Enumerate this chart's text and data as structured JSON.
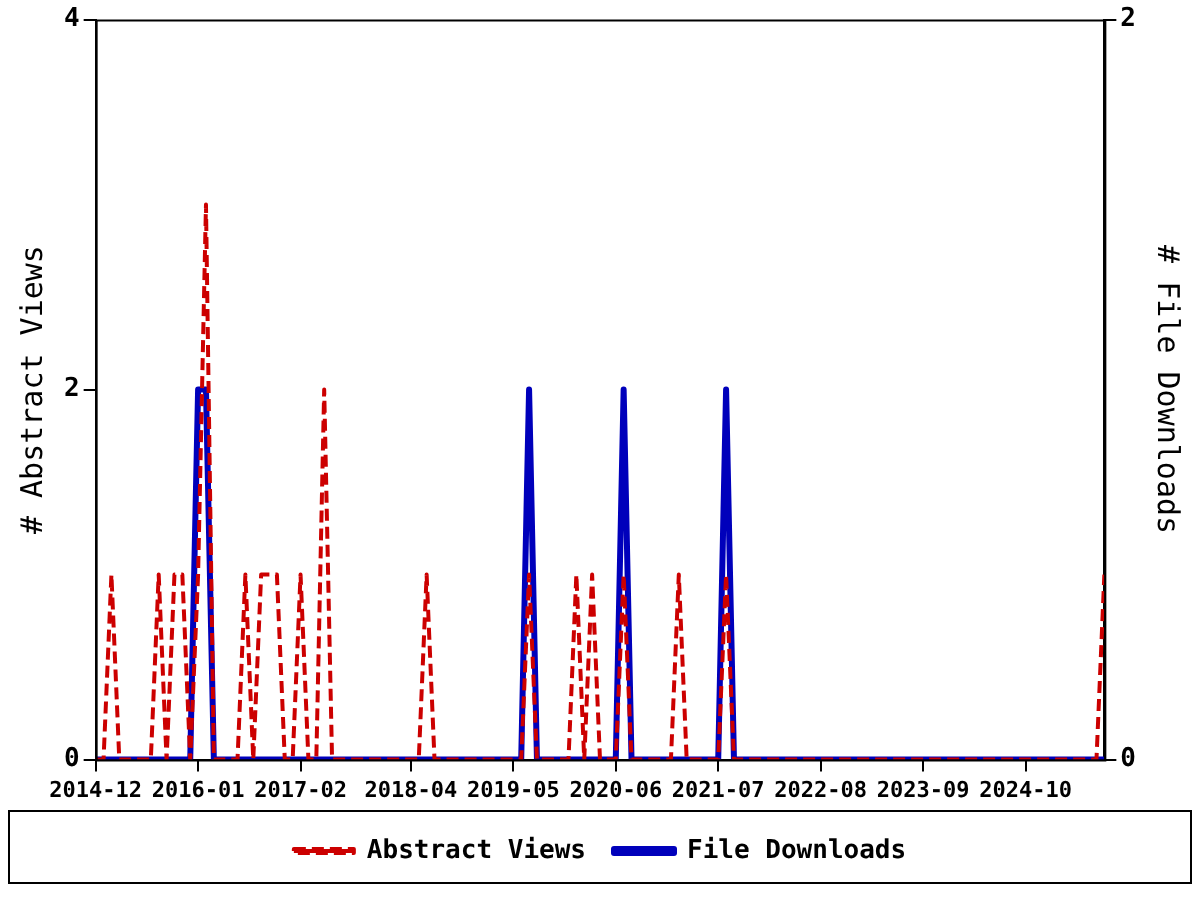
{
  "chart_data": {
    "type": "line",
    "xlabel": null,
    "ylabel": "# Abstract Views",
    "y2label": "# File Downloads",
    "x": [
      "2014-12",
      "2015-01",
      "2015-02",
      "2015-03",
      "2015-04",
      "2015-05",
      "2015-06",
      "2015-07",
      "2015-08",
      "2015-09",
      "2015-10",
      "2015-11",
      "2015-12",
      "2016-01",
      "2016-02",
      "2016-03",
      "2016-04",
      "2016-05",
      "2016-06",
      "2016-07",
      "2016-08",
      "2016-09",
      "2016-10",
      "2016-11",
      "2016-12",
      "2017-01",
      "2017-02",
      "2017-03",
      "2017-04",
      "2017-05",
      "2017-06",
      "2017-07",
      "2017-08",
      "2017-09",
      "2017-10",
      "2017-11",
      "2017-12",
      "2018-01",
      "2018-02",
      "2018-03",
      "2018-04",
      "2018-05",
      "2018-06",
      "2018-07",
      "2018-08",
      "2018-09",
      "2018-10",
      "2018-11",
      "2018-12",
      "2019-01",
      "2019-02",
      "2019-03",
      "2019-04",
      "2019-05",
      "2019-06",
      "2019-07",
      "2019-08",
      "2019-09",
      "2019-10",
      "2019-11",
      "2019-12",
      "2020-01",
      "2020-02",
      "2020-03",
      "2020-04",
      "2020-05",
      "2020-06",
      "2020-07",
      "2020-08",
      "2020-09",
      "2020-10",
      "2020-11",
      "2020-12",
      "2021-01",
      "2021-02",
      "2021-03",
      "2021-04",
      "2021-05",
      "2021-06",
      "2021-07",
      "2021-08",
      "2021-09",
      "2021-10",
      "2021-11",
      "2021-12",
      "2022-01",
      "2022-02",
      "2022-03",
      "2022-04",
      "2022-05",
      "2022-06",
      "2022-07",
      "2022-08",
      "2022-09",
      "2022-10",
      "2022-11",
      "2022-12",
      "2023-01",
      "2023-02",
      "2023-03",
      "2023-04",
      "2023-05",
      "2023-06",
      "2023-07",
      "2023-08",
      "2023-09",
      "2023-10",
      "2023-11",
      "2023-12",
      "2024-01",
      "2024-02",
      "2024-03",
      "2024-04",
      "2024-05",
      "2024-06",
      "2024-07",
      "2024-08",
      "2024-09",
      "2024-10",
      "2024-11",
      "2024-12",
      "2025-01",
      "2025-02",
      "2025-03",
      "2025-04",
      "2025-05",
      "2025-06",
      "2025-07",
      "2025-08"
    ],
    "series": [
      {
        "name": "Abstract Views",
        "color": "#cc0000",
        "line_style": "dashed",
        "values": [
          0,
          0,
          1,
          0,
          0,
          0,
          0,
          0,
          1,
          0,
          1,
          1,
          0,
          1,
          3,
          0,
          0,
          0,
          0,
          1,
          0,
          1,
          1,
          1,
          0,
          0,
          1,
          0,
          0,
          2,
          0,
          0,
          0,
          0,
          0,
          0,
          0,
          0,
          0,
          0,
          0,
          0,
          1,
          0,
          0,
          0,
          0,
          0,
          0,
          0,
          0,
          0,
          0,
          0,
          0,
          1,
          0,
          0,
          0,
          0,
          0,
          1,
          0,
          1,
          0,
          0,
          0,
          1,
          0,
          0,
          0,
          0,
          0,
          0,
          1,
          0,
          0,
          0,
          0,
          0,
          1,
          0,
          0,
          0,
          0,
          0,
          0,
          0,
          0,
          0,
          0,
          0,
          0,
          0,
          0,
          0,
          0,
          0,
          0,
          0,
          0,
          0,
          0,
          0,
          0,
          0,
          0,
          0,
          0,
          0,
          0,
          0,
          0,
          0,
          0,
          0,
          0,
          0,
          0,
          0,
          0,
          0,
          0,
          0,
          0,
          0,
          0,
          0,
          1
        ]
      },
      {
        "name": "File Downloads",
        "color": "#0000bb",
        "line_style": "solid",
        "axis": "y2",
        "values": [
          0,
          0,
          0,
          0,
          0,
          0,
          0,
          0,
          0,
          0,
          0,
          0,
          0,
          1,
          1,
          0,
          0,
          0,
          0,
          0,
          0,
          0,
          0,
          0,
          0,
          0,
          0,
          0,
          0,
          0,
          0,
          0,
          0,
          0,
          0,
          0,
          0,
          0,
          0,
          0,
          0,
          0,
          0,
          0,
          0,
          0,
          0,
          0,
          0,
          0,
          0,
          0,
          0,
          0,
          0,
          1,
          0,
          0,
          0,
          0,
          0,
          0,
          0,
          0,
          0,
          0,
          0,
          1,
          0,
          0,
          0,
          0,
          0,
          0,
          0,
          0,
          0,
          0,
          0,
          0,
          1,
          0,
          0,
          0,
          0,
          0,
          0,
          0,
          0,
          0,
          0,
          0,
          0,
          0,
          0,
          0,
          0,
          0,
          0,
          0,
          0,
          0,
          0,
          0,
          0,
          0,
          0,
          0,
          0,
          0,
          0,
          0,
          0,
          0,
          0,
          0,
          0,
          0,
          0,
          0,
          0,
          0,
          0,
          0,
          0,
          0,
          0,
          0,
          0
        ]
      }
    ],
    "xlim": [
      "2014-12",
      "2025-08"
    ],
    "xticks": [
      "2014-12",
      "2016-01",
      "2017-02",
      "2018-04",
      "2019-05",
      "2020-06",
      "2021-07",
      "2022-08",
      "2023-09",
      "2024-10"
    ],
    "ylim": [
      0,
      4
    ],
    "yticks": [
      0,
      2,
      4
    ],
    "y2lim": [
      0,
      2
    ],
    "y2ticks": [
      0,
      2
    ],
    "legend": "bottom",
    "marker": "none"
  }
}
